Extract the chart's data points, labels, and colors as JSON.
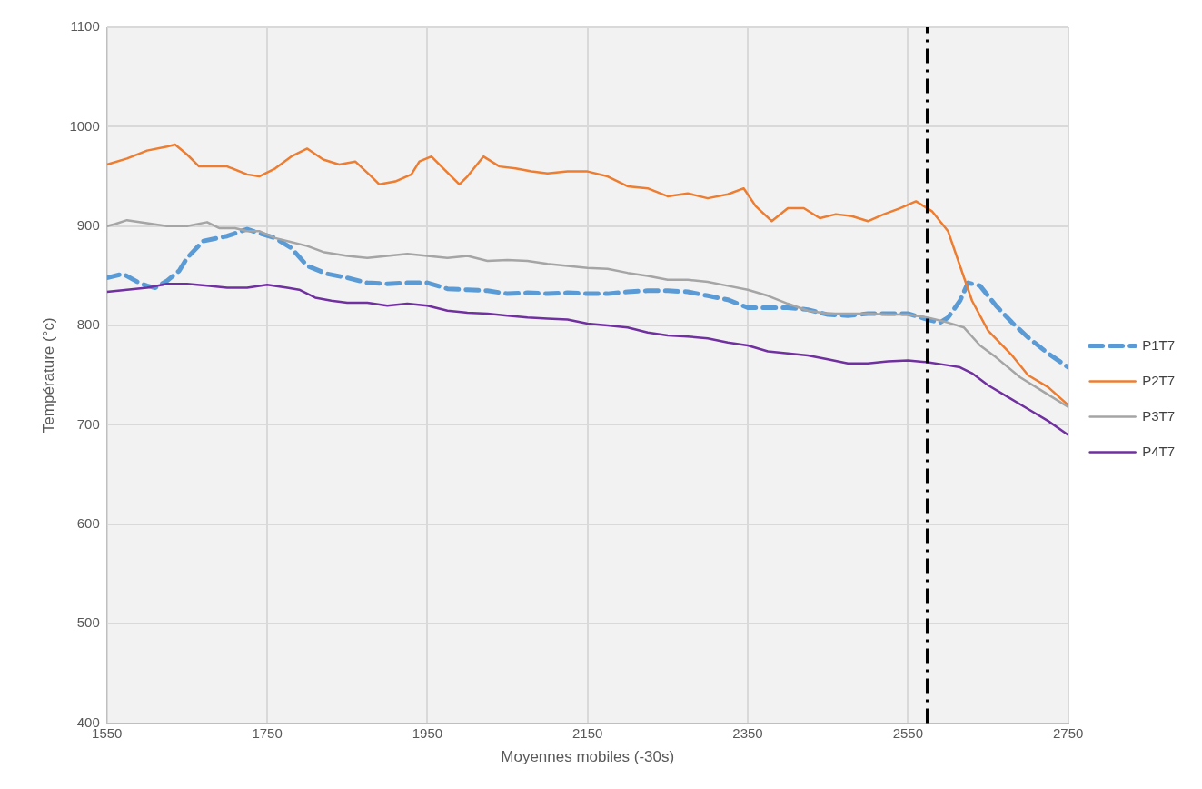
{
  "chart_data": {
    "type": "line",
    "xlabel": "Moyennes mobiles (-30s)",
    "ylabel": "Température (°c)",
    "xlim": [
      1550,
      2750
    ],
    "xticks": [
      1550,
      1750,
      1950,
      2150,
      2350,
      2550,
      2750
    ],
    "ylim": [
      400,
      1100
    ],
    "yticks": [
      400,
      500,
      600,
      700,
      800,
      900,
      1000,
      1100
    ],
    "grid": true,
    "legend": "right",
    "marker": "none",
    "ref_lines": [
      {
        "axis": "x",
        "value": 2574,
        "color": "#000000",
        "line_style": "dashed"
      }
    ],
    "series": [
      {
        "name": "P1T7",
        "color": "#5b9bd5",
        "line_style": "dashed",
        "x": [
          1550,
          1570,
          1590,
          1600,
          1610,
          1625,
          1640,
          1650,
          1670,
          1700,
          1725,
          1740,
          1760,
          1780,
          1800,
          1825,
          1850,
          1875,
          1900,
          1925,
          1950,
          1975,
          2000,
          2025,
          2050,
          2075,
          2100,
          2125,
          2150,
          2175,
          2200,
          2225,
          2250,
          2275,
          2300,
          2325,
          2350,
          2375,
          2400,
          2425,
          2450,
          2475,
          2500,
          2525,
          2550,
          2575,
          2590,
          2600,
          2615,
          2625,
          2640,
          2660,
          2680,
          2700,
          2725,
          2750
        ],
        "values": [
          848,
          852,
          843,
          840,
          838,
          845,
          855,
          868,
          885,
          890,
          897,
          893,
          888,
          878,
          860,
          852,
          848,
          843,
          842,
          843,
          843,
          837,
          836,
          835,
          832,
          833,
          832,
          833,
          832,
          832,
          834,
          835,
          835,
          834,
          830,
          826,
          818,
          818,
          818,
          816,
          811,
          810,
          812,
          812,
          812,
          806,
          803,
          808,
          825,
          843,
          840,
          820,
          803,
          788,
          772,
          758
        ]
      },
      {
        "name": "P2T7",
        "color": "#ed7d31",
        "line_style": "solid",
        "x": [
          1550,
          1575,
          1600,
          1625,
          1635,
          1650,
          1665,
          1680,
          1700,
          1725,
          1740,
          1760,
          1780,
          1800,
          1820,
          1840,
          1860,
          1880,
          1890,
          1910,
          1930,
          1940,
          1955,
          1970,
          1990,
          2000,
          2020,
          2040,
          2060,
          2080,
          2100,
          2125,
          2150,
          2175,
          2200,
          2225,
          2250,
          2275,
          2300,
          2325,
          2345,
          2360,
          2380,
          2400,
          2420,
          2440,
          2460,
          2480,
          2500,
          2520,
          2540,
          2560,
          2580,
          2600,
          2615,
          2630,
          2650,
          2680,
          2700,
          2725,
          2750
        ],
        "values": [
          962,
          968,
          976,
          980,
          982,
          972,
          960,
          960,
          960,
          952,
          950,
          958,
          970,
          978,
          967,
          962,
          965,
          950,
          942,
          945,
          952,
          965,
          970,
          958,
          942,
          950,
          970,
          960,
          958,
          955,
          953,
          955,
          955,
          950,
          940,
          938,
          930,
          933,
          928,
          932,
          938,
          920,
          905,
          918,
          918,
          908,
          912,
          910,
          905,
          912,
          918,
          925,
          915,
          895,
          860,
          825,
          795,
          770,
          750,
          738,
          720
        ]
      },
      {
        "name": "P3T7",
        "color": "#a5a5a5",
        "line_style": "solid",
        "x": [
          1550,
          1560,
          1575,
          1600,
          1625,
          1650,
          1675,
          1690,
          1710,
          1725,
          1740,
          1760,
          1780,
          1800,
          1820,
          1850,
          1875,
          1900,
          1925,
          1950,
          1975,
          2000,
          2025,
          2050,
          2075,
          2100,
          2125,
          2150,
          2175,
          2200,
          2225,
          2250,
          2275,
          2300,
          2325,
          2350,
          2375,
          2400,
          2425,
          2450,
          2475,
          2500,
          2525,
          2550,
          2575,
          2600,
          2620,
          2640,
          2660,
          2690,
          2720,
          2750
        ],
        "values": [
          900,
          902,
          906,
          903,
          900,
          900,
          904,
          898,
          898,
          895,
          895,
          888,
          884,
          880,
          874,
          870,
          868,
          870,
          872,
          870,
          868,
          870,
          865,
          866,
          865,
          862,
          860,
          858,
          857,
          853,
          850,
          846,
          846,
          844,
          840,
          836,
          830,
          822,
          815,
          812,
          812,
          812,
          811,
          811,
          808,
          803,
          798,
          780,
          768,
          748,
          733,
          718
        ]
      },
      {
        "name": "P4T7",
        "color": "#7030a0",
        "line_style": "solid",
        "x": [
          1550,
          1575,
          1600,
          1625,
          1650,
          1675,
          1700,
          1725,
          1750,
          1775,
          1790,
          1810,
          1830,
          1850,
          1875,
          1900,
          1925,
          1950,
          1975,
          2000,
          2025,
          2050,
          2075,
          2100,
          2125,
          2150,
          2175,
          2200,
          2225,
          2250,
          2275,
          2300,
          2325,
          2350,
          2375,
          2400,
          2425,
          2450,
          2475,
          2500,
          2525,
          2550,
          2575,
          2600,
          2615,
          2630,
          2650,
          2675,
          2700,
          2725,
          2750
        ],
        "values": [
          834,
          836,
          838,
          842,
          842,
          840,
          838,
          838,
          841,
          838,
          836,
          828,
          825,
          823,
          823,
          820,
          822,
          820,
          815,
          813,
          812,
          810,
          808,
          807,
          806,
          802,
          800,
          798,
          793,
          790,
          789,
          787,
          783,
          780,
          774,
          772,
          770,
          766,
          762,
          762,
          764,
          765,
          763,
          760,
          758,
          752,
          740,
          728,
          716,
          704,
          690
        ]
      }
    ]
  }
}
